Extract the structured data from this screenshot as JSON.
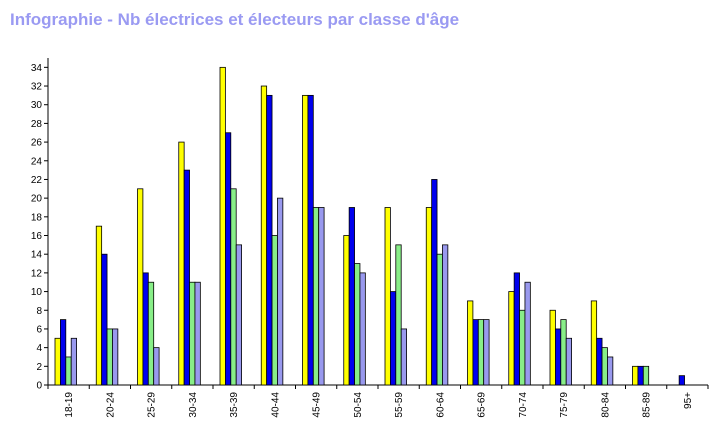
{
  "chart_data": {
    "type": "bar",
    "title": "Infographie - Nb électrices et électeurs par classe d'âge",
    "categories": [
      "18-19",
      "20-24",
      "25-29",
      "30-34",
      "35-39",
      "40-44",
      "45-49",
      "50-54",
      "55-59",
      "60-64",
      "65-69",
      "70-74",
      "75-79",
      "80-84",
      "85-89",
      "95+"
    ],
    "series": [
      {
        "color": "#ffff00",
        "values": [
          5,
          17,
          21,
          26,
          34,
          32,
          31,
          16,
          19,
          19,
          9,
          10,
          8,
          9,
          2,
          0
        ]
      },
      {
        "color": "#0000ee",
        "values": [
          7,
          14,
          12,
          23,
          27,
          31,
          31,
          19,
          10,
          22,
          7,
          12,
          6,
          5,
          2,
          1
        ]
      },
      {
        "color": "#88ee88",
        "values": [
          3,
          6,
          11,
          11,
          21,
          16,
          19,
          13,
          15,
          14,
          7,
          8,
          7,
          4,
          2,
          0
        ]
      },
      {
        "color": "#9999ee",
        "values": [
          5,
          6,
          4,
          11,
          15,
          20,
          19,
          12,
          6,
          15,
          7,
          11,
          5,
          3,
          0,
          0
        ]
      }
    ],
    "yticks": [
      0,
      2,
      4,
      6,
      8,
      10,
      12,
      14,
      16,
      18,
      20,
      22,
      24,
      26,
      28,
      30,
      32,
      34
    ],
    "ylim": [
      0,
      35
    ],
    "grid": false,
    "legend": "none"
  }
}
